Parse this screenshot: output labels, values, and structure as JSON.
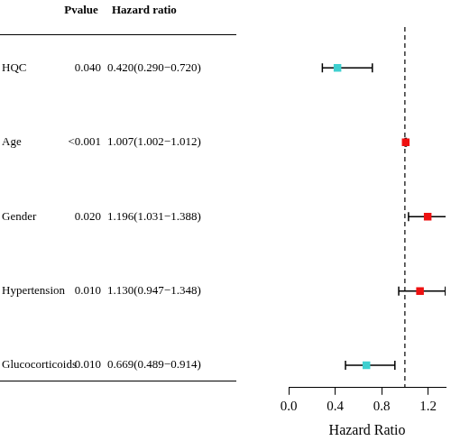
{
  "chart_data": {
    "type": "forest",
    "columns": [
      "Pvalue",
      "Hazard ratio"
    ],
    "x_label": "Hazard Ratio",
    "categories": [
      "HQC",
      "Age",
      "Gender",
      "Hypertension",
      "Glucocorticoids"
    ],
    "pvalues": [
      "0.040",
      "<0.001",
      "0.020",
      "0.010",
      "0.010"
    ],
    "hr_labels": [
      "0.420(0.290−0.720)",
      "1.007(1.002−1.012)",
      "1.196(1.031−1.388)",
      "1.130(0.947−1.348)",
      "0.669(0.489−0.914)"
    ],
    "values": [
      0.42,
      1.007,
      1.196,
      1.13,
      0.669
    ],
    "lower": [
      0.29,
      1.002,
      1.031,
      0.947,
      0.489
    ],
    "upper": [
      0.72,
      1.012,
      1.388,
      1.348,
      0.914
    ],
    "colors": [
      "#3fd0d0",
      "#ee1111",
      "#ee1111",
      "#ee1111",
      "#3fd0d0"
    ],
    "reference_line": 1,
    "xlim": [
      0,
      1.35
    ],
    "xticks": [
      {
        "value": 0,
        "label": "0.0"
      },
      {
        "value": 0.4,
        "label": "0.4"
      },
      {
        "value": 0.8,
        "label": "0.8"
      },
      {
        "value": 1.2,
        "label": "1.2"
      }
    ],
    "grid": false
  }
}
